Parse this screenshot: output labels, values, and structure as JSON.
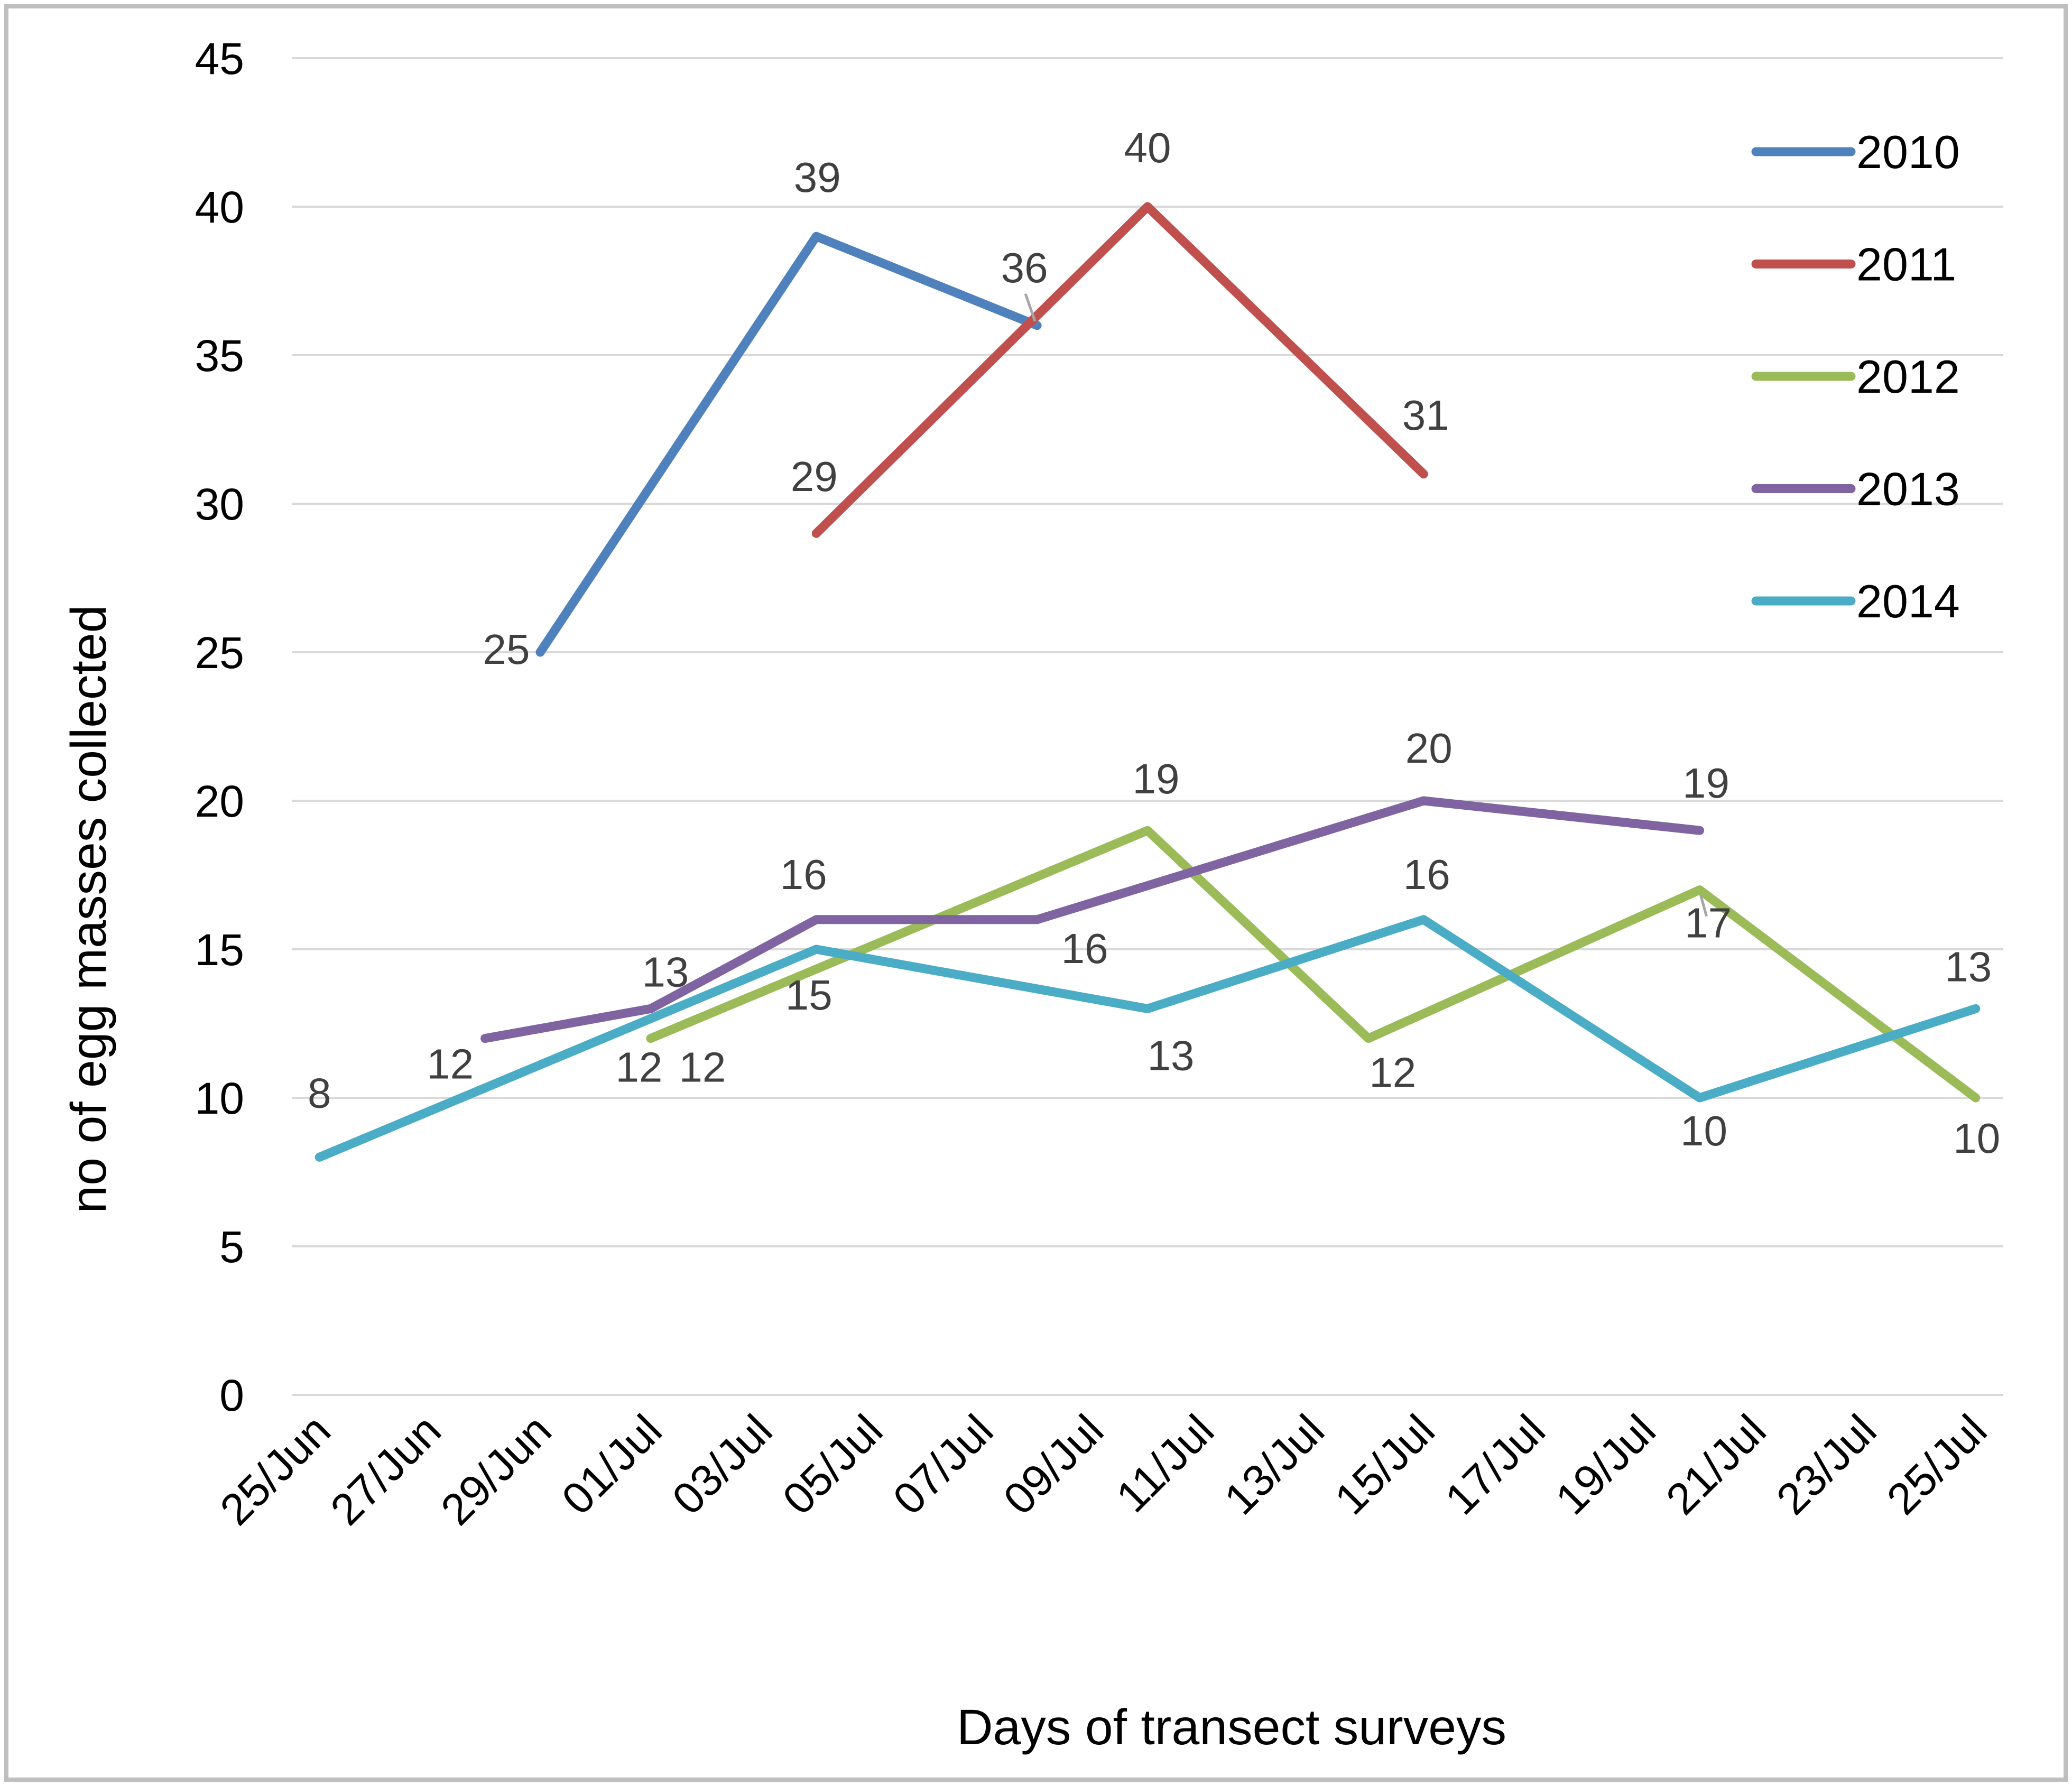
{
  "chart_data": {
    "type": "line",
    "title": "",
    "x_axis": {
      "title": "Days of transect surveys",
      "tick_labels": [
        "25/Jun",
        "27/Jun",
        "29/Jun",
        "01/Jul",
        "03/Jul",
        "05/Jul",
        "07/Jul",
        "09/Jul",
        "11/Jul",
        "13/Jul",
        "15/Jul",
        "17/Jul",
        "19/Jul",
        "21/Jul",
        "23/Jul",
        "25/Jul"
      ],
      "tick_day_offsets": [
        0,
        2,
        4,
        6,
        8,
        10,
        12,
        14,
        16,
        18,
        20,
        22,
        24,
        26,
        28,
        30
      ],
      "range_days": [
        -0.5,
        30.5
      ],
      "label_rotation_deg": -45
    },
    "y_axis": {
      "title": "no of egg masses collected",
      "ticks": [
        0,
        5,
        10,
        15,
        20,
        25,
        30,
        35,
        40,
        45
      ],
      "range": [
        0,
        45
      ]
    },
    "grid": "horizontal",
    "legend": {
      "position": "top-right",
      "entries": [
        "2010",
        "2011",
        "2012",
        "2013",
        "2014"
      ]
    },
    "series": [
      {
        "name": "2010",
        "color": "#4F81BD",
        "points": [
          {
            "date": "29/Jun",
            "day": 4,
            "value": 25,
            "labels": [
              {
                "text": "25",
                "dx": -64,
                "dy": -6
              }
            ]
          },
          {
            "date": "04/Jul",
            "day": 9,
            "value": 39,
            "labels": [
              {
                "text": "39",
                "dx": 2,
                "dy": -112
              }
            ]
          },
          {
            "date": "08/Jul",
            "day": 13,
            "value": 36,
            "labels": [
              {
                "text": "36",
                "dx": -24,
                "dy": -110
              }
            ],
            "leader": [
              -22,
              -60,
              -4,
              -8
            ]
          }
        ]
      },
      {
        "name": "2011",
        "color": "#C0504D",
        "points": [
          {
            "date": "04/Jul",
            "day": 9,
            "value": 29,
            "labels": [
              {
                "text": "29",
                "dx": -4,
                "dy": -108
              }
            ]
          },
          {
            "date": "10/Jul",
            "day": 15,
            "value": 40,
            "labels": [
              {
                "text": "40",
                "dx": 0,
                "dy": -112
              }
            ]
          },
          {
            "date": "15/Jul",
            "day": 20,
            "value": 31,
            "labels": [
              {
                "text": "31",
                "dx": 4,
                "dy": -112
              }
            ]
          }
        ]
      },
      {
        "name": "2012",
        "color": "#9BBB59",
        "points": [
          {
            "date": "01/Jul",
            "day": 6,
            "value": 12,
            "labels": [
              {
                "text": "12",
                "dx": -22,
                "dy": 54
              },
              {
                "text": "12",
                "dx": 98,
                "dy": 54
              }
            ]
          },
          {
            "date": "10/Jul",
            "day": 15,
            "value": 19,
            "labels": [
              {
                "text": "19",
                "dx": 16,
                "dy": -98
              }
            ]
          },
          {
            "date": "14/Jul",
            "day": 19,
            "value": 12,
            "labels": [
              {
                "text": "12",
                "dx": 46,
                "dy": 64
              }
            ]
          },
          {
            "date": "20/Jul",
            "day": 25,
            "value": 17,
            "labels": [
              {
                "text": "17",
                "dx": 16,
                "dy": 62
              }
            ],
            "leader": [
              2,
              10,
              13,
              50
            ]
          },
          {
            "date": "25/Jul",
            "day": 30,
            "value": 10,
            "labels": [
              {
                "text": "10",
                "dx": 2,
                "dy": 76
              }
            ]
          }
        ]
      },
      {
        "name": "2013",
        "color": "#8064A2",
        "points": [
          {
            "date": "28/Jun",
            "day": 3,
            "value": 12,
            "labels": [
              {
                "text": "12",
                "dx": -66,
                "dy": 48
              }
            ]
          },
          {
            "date": "01/Jul",
            "day": 6,
            "value": 13,
            "labels": [
              {
                "text": "13",
                "dx": 28,
                "dy": -70
              }
            ]
          },
          {
            "date": "04/Jul",
            "day": 9,
            "value": 16,
            "labels": [
              {
                "text": "16",
                "dx": -24,
                "dy": -86
              }
            ]
          },
          {
            "date": "08/Jul",
            "day": 13,
            "value": 16,
            "labels": [
              {
                "text": "16",
                "dx": 90,
                "dy": 54
              }
            ]
          },
          {
            "date": "15/Jul",
            "day": 20,
            "value": 20,
            "labels": [
              {
                "text": "20",
                "dx": 10,
                "dy": -100
              }
            ]
          },
          {
            "date": "20/Jul",
            "day": 25,
            "value": 19,
            "labels": [
              {
                "text": "19",
                "dx": 12,
                "dy": -90
              }
            ]
          }
        ]
      },
      {
        "name": "2014",
        "color": "#4BACC6",
        "points": [
          {
            "date": "25/Jun",
            "day": 0,
            "value": 8,
            "labels": [
              {
                "text": "8",
                "dx": 0,
                "dy": -122
              }
            ]
          },
          {
            "date": "04/Jul",
            "day": 9,
            "value": 15,
            "labels": [
              {
                "text": "15",
                "dx": -14,
                "dy": 86
              }
            ]
          },
          {
            "date": "10/Jul",
            "day": 15,
            "value": 13,
            "labels": [
              {
                "text": "13",
                "dx": 44,
                "dy": 88
              }
            ]
          },
          {
            "date": "15/Jul",
            "day": 20,
            "value": 16,
            "labels": [
              {
                "text": "16",
                "dx": 6,
                "dy": -86
              }
            ]
          },
          {
            "date": "20/Jul",
            "day": 25,
            "value": 10,
            "labels": [
              {
                "text": "10",
                "dx": 8,
                "dy": 62
              }
            ]
          },
          {
            "date": "25/Jul",
            "day": 30,
            "value": 13,
            "labels": [
              {
                "text": "13",
                "dx": -14,
                "dy": -80
              }
            ]
          }
        ]
      }
    ],
    "colors": {
      "grid": "#D9D9D9",
      "border": "#BFBFBF",
      "data_label": "#404040",
      "leader": "#A6A6A6",
      "axis_text": "#000000"
    }
  }
}
